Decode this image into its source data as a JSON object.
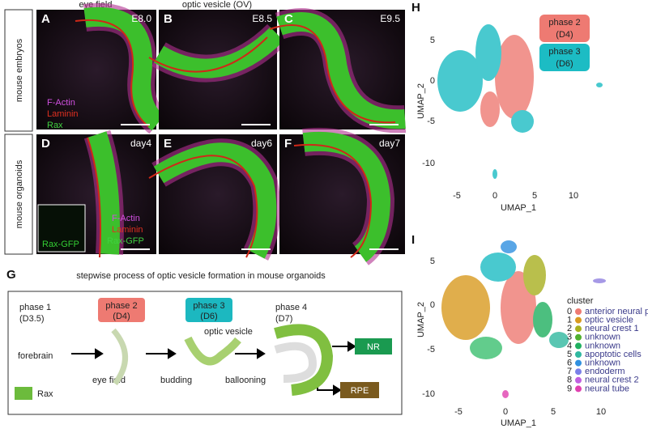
{
  "column_headers": [
    "eye field",
    "optic vesicle (OV)"
  ],
  "row_headers": [
    "mouse embryos",
    "mouse organoids"
  ],
  "micrographs": [
    {
      "letter": "A",
      "stage": "E8.0"
    },
    {
      "letter": "B",
      "stage": "E8.5"
    },
    {
      "letter": "C",
      "stage": "E9.5"
    },
    {
      "letter": "D",
      "stage": "day4"
    },
    {
      "letter": "E",
      "stage": "day6"
    },
    {
      "letter": "F",
      "stage": "day7"
    }
  ],
  "stain_legend_embryo": [
    "F-Actin",
    "Laminin",
    "Rax"
  ],
  "stain_legend_organoid": [
    "F-Actin",
    "Laminin",
    "Rax-GFP"
  ],
  "inset_label": "Rax-GFP",
  "panel_g": {
    "letter": "G",
    "title": "stepwise process of optic vesicle formation in mouse organoids",
    "phases": [
      {
        "name": "phase 1",
        "day": "(D3.5)"
      },
      {
        "name": "phase 2",
        "day": "(D4)"
      },
      {
        "name": "phase 3",
        "day": "(D6)"
      },
      {
        "name": "phase 4",
        "day": "(D7)"
      }
    ],
    "steps": [
      "forebrain",
      "eye field",
      "budding",
      "ballooning"
    ],
    "optic_vesicle": "optic vesicle",
    "outputs": [
      "NR",
      "RPE"
    ],
    "legend": "Rax"
  },
  "panel_h": {
    "letter": "H",
    "xlabel": "UMAP_1",
    "ylabel": "UMAP_2",
    "xticks": [
      -5,
      0,
      5,
      10
    ],
    "yticks": [
      5,
      0,
      -5,
      -10
    ],
    "legend": [
      {
        "name": "phase 2",
        "day": "(D4)"
      },
      {
        "name": "phase 3",
        "day": "(D6)"
      }
    ]
  },
  "panel_i": {
    "letter": "I",
    "xlabel": "UMAP_1",
    "ylabel": "UMAP_2",
    "xticks": [
      -5,
      0,
      5,
      10
    ],
    "yticks": [
      5,
      0,
      -5,
      -10
    ],
    "legend_title": "cluster",
    "clusters": [
      {
        "id": 0,
        "name": "anterior neural plate"
      },
      {
        "id": 1,
        "name": "optic vesicle"
      },
      {
        "id": 2,
        "name": "neural crest 1"
      },
      {
        "id": 3,
        "name": "unknown"
      },
      {
        "id": 4,
        "name": "unknown"
      },
      {
        "id": 5,
        "name": "apoptotic cells"
      },
      {
        "id": 6,
        "name": "unknown"
      },
      {
        "id": 7,
        "name": "endoderm"
      },
      {
        "id": 8,
        "name": "neural crest 2"
      },
      {
        "id": 9,
        "name": "neural tube"
      }
    ]
  }
}
